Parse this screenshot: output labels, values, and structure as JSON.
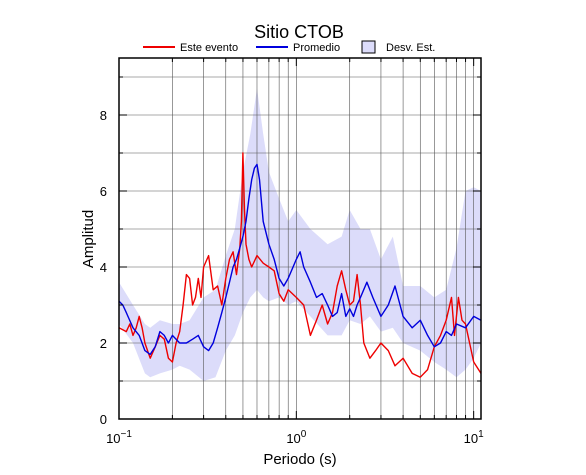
{
  "chart_data": {
    "type": "line",
    "title": "Sitio CTOB",
    "xlabel": "Periodo (s)",
    "ylabel": "Amplitud",
    "x_scale": "log",
    "xlim": [
      0.1,
      11
    ],
    "ylim": [
      0,
      9.5
    ],
    "grid": true,
    "legend_position": "top",
    "x_ticks": [
      {
        "value": 0.1,
        "base": "10",
        "exp": "−1"
      },
      {
        "value": 1,
        "base": "10",
        "exp": "0"
      },
      {
        "value": 10,
        "base": "10",
        "exp": "1"
      }
    ],
    "y_ticks": [
      0,
      2,
      4,
      6,
      8
    ],
    "legend": [
      {
        "label": "Este evento",
        "kind": "line",
        "color": "#ee0000"
      },
      {
        "label": "Promedio",
        "kind": "line",
        "color": "#0000dd"
      },
      {
        "label": "Desv. Est.",
        "kind": "box",
        "color": "#dcdcfa"
      }
    ],
    "series": [
      {
        "name": "Este evento",
        "color": "#ee0000",
        "x": [
          0.1,
          0.11,
          0.115,
          0.12,
          0.125,
          0.13,
          0.135,
          0.14,
          0.15,
          0.16,
          0.17,
          0.18,
          0.19,
          0.2,
          0.21,
          0.22,
          0.23,
          0.24,
          0.25,
          0.26,
          0.27,
          0.28,
          0.29,
          0.3,
          0.32,
          0.34,
          0.36,
          0.38,
          0.4,
          0.42,
          0.44,
          0.46,
          0.48,
          0.49,
          0.5,
          0.51,
          0.52,
          0.54,
          0.56,
          0.6,
          0.65,
          0.7,
          0.75,
          0.8,
          0.85,
          0.9,
          1.0,
          1.1,
          1.2,
          1.3,
          1.4,
          1.5,
          1.6,
          1.7,
          1.8,
          1.9,
          2.0,
          2.1,
          2.2,
          2.3,
          2.4,
          2.6,
          2.8,
          3.0,
          3.3,
          3.6,
          4.0,
          4.5,
          5.0,
          5.5,
          6.0,
          6.5,
          7.0,
          7.5,
          7.8,
          8.2,
          8.6,
          9.0,
          10.0,
          11.0
        ],
        "values": [
          2.4,
          2.3,
          2.5,
          2.2,
          2.4,
          2.7,
          2.4,
          2.0,
          1.6,
          1.9,
          2.2,
          2.1,
          1.6,
          1.5,
          2.0,
          2.3,
          3.0,
          3.8,
          3.7,
          3.0,
          3.2,
          3.7,
          3.2,
          4.0,
          4.3,
          3.4,
          3.5,
          3.0,
          3.7,
          4.2,
          4.4,
          3.8,
          4.5,
          5.2,
          7.0,
          5.5,
          4.6,
          4.2,
          4.0,
          4.3,
          4.1,
          4.0,
          3.9,
          3.3,
          3.1,
          3.4,
          3.2,
          3.0,
          2.2,
          2.6,
          3.0,
          2.5,
          2.8,
          3.5,
          3.9,
          3.4,
          3.0,
          3.1,
          3.8,
          3.0,
          2.0,
          1.6,
          1.8,
          2.0,
          1.8,
          1.4,
          1.6,
          1.2,
          1.1,
          1.3,
          1.9,
          2.2,
          2.6,
          3.2,
          2.2,
          3.2,
          2.6,
          2.5,
          1.5,
          1.2
        ]
      },
      {
        "name": "Promedio",
        "color": "#0000dd",
        "x": [
          0.1,
          0.105,
          0.11,
          0.12,
          0.13,
          0.14,
          0.15,
          0.16,
          0.17,
          0.18,
          0.19,
          0.2,
          0.21,
          0.22,
          0.24,
          0.26,
          0.28,
          0.3,
          0.32,
          0.34,
          0.36,
          0.38,
          0.4,
          0.42,
          0.44,
          0.46,
          0.48,
          0.5,
          0.52,
          0.54,
          0.56,
          0.58,
          0.6,
          0.62,
          0.65,
          0.7,
          0.75,
          0.8,
          0.85,
          0.9,
          1.0,
          1.05,
          1.1,
          1.2,
          1.3,
          1.4,
          1.5,
          1.6,
          1.7,
          1.8,
          1.9,
          2.0,
          2.1,
          2.2,
          2.3,
          2.5,
          2.7,
          3.0,
          3.3,
          3.6,
          4.0,
          4.5,
          5.0,
          5.5,
          6.0,
          6.5,
          7.0,
          7.5,
          8.0,
          9.0,
          10.0,
          11.0
        ],
        "values": [
          3.1,
          3.0,
          2.8,
          2.4,
          2.2,
          1.8,
          1.7,
          1.9,
          2.3,
          2.2,
          2.0,
          2.2,
          2.1,
          2.0,
          2.0,
          2.1,
          2.2,
          1.9,
          1.8,
          2.0,
          2.4,
          2.8,
          3.2,
          3.6,
          4.0,
          4.2,
          4.5,
          4.8,
          5.2,
          5.8,
          6.3,
          6.6,
          6.7,
          6.3,
          5.2,
          4.6,
          4.2,
          3.7,
          3.5,
          3.7,
          4.2,
          4.4,
          4.0,
          3.6,
          3.2,
          3.3,
          3.0,
          2.7,
          2.8,
          3.3,
          2.7,
          2.9,
          2.7,
          3.0,
          3.2,
          3.6,
          3.2,
          2.7,
          3.0,
          3.5,
          2.7,
          2.4,
          2.6,
          2.2,
          1.9,
          2.0,
          2.3,
          2.2,
          2.5,
          2.4,
          2.7,
          2.6
        ]
      },
      {
        "name": "Desv. Est.",
        "color": "#dcdcfa",
        "x": [
          0.1,
          0.12,
          0.14,
          0.15,
          0.17,
          0.2,
          0.22,
          0.25,
          0.3,
          0.35,
          0.4,
          0.45,
          0.5,
          0.55,
          0.6,
          0.65,
          0.7,
          0.8,
          0.9,
          1.0,
          1.2,
          1.5,
          1.8,
          2.0,
          2.3,
          2.6,
          3.0,
          3.5,
          4.0,
          5.0,
          6.0,
          7.0,
          8.0,
          9.0,
          10.0,
          11.0
        ],
        "upper": [
          3.6,
          3.0,
          2.5,
          2.4,
          2.6,
          2.5,
          2.5,
          2.6,
          3.2,
          3.4,
          4.3,
          5.0,
          6.5,
          7.5,
          8.7,
          7.5,
          6.5,
          5.8,
          5.2,
          5.5,
          5.0,
          4.6,
          4.8,
          5.5,
          5.0,
          5.0,
          4.2,
          4.8,
          3.5,
          3.5,
          3.2,
          3.4,
          4.5,
          6.0,
          6.1,
          6.0
        ],
        "lower": [
          2.5,
          2.0,
          1.2,
          1.1,
          1.2,
          1.3,
          1.4,
          1.3,
          1.0,
          1.1,
          1.8,
          2.2,
          2.8,
          3.2,
          3.4,
          3.2,
          3.1,
          3.2,
          3.0,
          3.1,
          2.7,
          2.2,
          2.2,
          2.6,
          2.5,
          2.7,
          2.3,
          2.4,
          2.0,
          1.8,
          1.5,
          1.3,
          1.1,
          1.3,
          1.6,
          2.0
        ]
      }
    ]
  }
}
